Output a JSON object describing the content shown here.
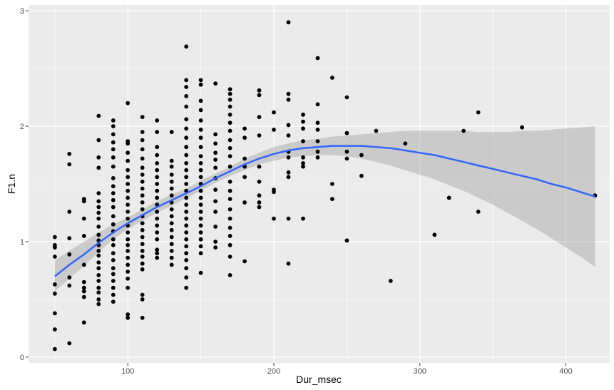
{
  "chart_data": {
    "type": "scatter",
    "xlabel": "Dur_msec",
    "ylabel": "F1.n",
    "xlim": [
      32,
      430
    ],
    "ylim": [
      -0.05,
      3.05
    ],
    "x_ticks": [
      100,
      200,
      300,
      400
    ],
    "x_minor_ticks": [
      50,
      150,
      250,
      350
    ],
    "y_ticks": [
      0,
      1,
      2,
      3
    ],
    "y_minor_ticks": [
      0.5,
      1.5,
      2.5
    ],
    "grid": true,
    "colors": {
      "panel_background": "#ebebeb",
      "grid": "#ffffff",
      "points": "#000000",
      "smooth_line": "#3366ff",
      "ribbon": "#999999"
    },
    "points": [
      [
        50,
        1.04
      ],
      [
        50,
        0.97
      ],
      [
        50,
        0.95
      ],
      [
        50,
        0.87
      ],
      [
        50,
        0.63
      ],
      [
        50,
        0.55
      ],
      [
        50,
        0.38
      ],
      [
        50,
        0.24
      ],
      [
        50,
        0.07
      ],
      [
        60,
        1.76
      ],
      [
        60,
        1.67
      ],
      [
        60,
        1.26
      ],
      [
        60,
        1.03
      ],
      [
        60,
        0.89
      ],
      [
        60,
        0.69
      ],
      [
        60,
        0.62
      ],
      [
        60,
        0.12
      ],
      [
        70,
        1.37
      ],
      [
        70,
        1.35
      ],
      [
        70,
        1.2
      ],
      [
        70,
        1.05
      ],
      [
        70,
        0.8
      ],
      [
        70,
        0.65
      ],
      [
        70,
        0.6
      ],
      [
        70,
        0.57
      ],
      [
        70,
        0.52
      ],
      [
        70,
        0.3
      ],
      [
        80,
        2.09
      ],
      [
        80,
        1.88
      ],
      [
        80,
        1.73
      ],
      [
        80,
        1.64
      ],
      [
        80,
        1.42
      ],
      [
        80,
        1.35
      ],
      [
        80,
        1.3
      ],
      [
        80,
        1.25
      ],
      [
        80,
        1.2
      ],
      [
        80,
        1.13
      ],
      [
        80,
        1.06
      ],
      [
        80,
        1.01
      ],
      [
        80,
        0.97
      ],
      [
        80,
        0.92
      ],
      [
        80,
        0.88
      ],
      [
        80,
        0.82
      ],
      [
        80,
        0.77
      ],
      [
        80,
        0.71
      ],
      [
        80,
        0.66
      ],
      [
        80,
        0.6
      ],
      [
        80,
        0.56
      ],
      [
        80,
        0.5
      ],
      [
        80,
        0.46
      ],
      [
        90,
        2.05
      ],
      [
        90,
        2.0
      ],
      [
        90,
        1.93
      ],
      [
        90,
        1.86
      ],
      [
        90,
        1.8
      ],
      [
        90,
        1.73
      ],
      [
        90,
        1.65
      ],
      [
        90,
        1.55
      ],
      [
        90,
        1.48
      ],
      [
        90,
        1.42
      ],
      [
        90,
        1.36
      ],
      [
        90,
        1.3
      ],
      [
        90,
        1.22
      ],
      [
        90,
        1.15
      ],
      [
        90,
        1.09
      ],
      [
        90,
        1.02
      ],
      [
        90,
        0.97
      ],
      [
        90,
        0.9
      ],
      [
        90,
        0.84
      ],
      [
        90,
        0.77
      ],
      [
        90,
        0.72
      ],
      [
        90,
        0.66
      ],
      [
        90,
        0.6
      ],
      [
        90,
        0.54
      ],
      [
        90,
        0.48
      ],
      [
        100,
        2.2
      ],
      [
        100,
        1.87
      ],
      [
        100,
        1.85
      ],
      [
        100,
        1.77
      ],
      [
        100,
        1.7
      ],
      [
        100,
        1.62
      ],
      [
        100,
        1.56
      ],
      [
        100,
        1.5
      ],
      [
        100,
        1.44
      ],
      [
        100,
        1.38
      ],
      [
        100,
        1.32
      ],
      [
        100,
        1.26
      ],
      [
        100,
        1.2
      ],
      [
        100,
        1.14
      ],
      [
        100,
        1.08
      ],
      [
        100,
        1.02
      ],
      [
        100,
        0.97
      ],
      [
        100,
        0.92
      ],
      [
        100,
        0.86
      ],
      [
        100,
        0.8
      ],
      [
        100,
        0.74
      ],
      [
        100,
        0.68
      ],
      [
        100,
        0.6
      ],
      [
        100,
        0.37
      ],
      [
        100,
        0.34
      ],
      [
        110,
        2.08
      ],
      [
        110,
        1.95
      ],
      [
        110,
        1.88
      ],
      [
        110,
        1.8
      ],
      [
        110,
        1.72
      ],
      [
        110,
        1.64
      ],
      [
        110,
        1.58
      ],
      [
        110,
        1.52
      ],
      [
        110,
        1.46
      ],
      [
        110,
        1.4
      ],
      [
        110,
        1.34
      ],
      [
        110,
        1.28
      ],
      [
        110,
        1.22
      ],
      [
        110,
        1.16
      ],
      [
        110,
        1.1
      ],
      [
        110,
        1.04
      ],
      [
        110,
        0.98
      ],
      [
        110,
        0.92
      ],
      [
        110,
        0.87
      ],
      [
        110,
        0.81
      ],
      [
        110,
        0.76
      ],
      [
        110,
        0.54
      ],
      [
        110,
        0.5
      ],
      [
        110,
        0.34
      ],
      [
        120,
        2.05
      ],
      [
        120,
        1.95
      ],
      [
        120,
        1.82
      ],
      [
        120,
        1.75
      ],
      [
        120,
        1.68
      ],
      [
        120,
        1.62
      ],
      [
        120,
        1.56
      ],
      [
        120,
        1.5
      ],
      [
        120,
        1.44
      ],
      [
        120,
        1.38
      ],
      [
        120,
        1.32
      ],
      [
        120,
        1.26
      ],
      [
        120,
        1.2
      ],
      [
        120,
        1.14
      ],
      [
        120,
        1.08
      ],
      [
        120,
        1.02
      ],
      [
        120,
        0.93
      ],
      [
        120,
        0.9
      ],
      [
        120,
        0.86
      ],
      [
        130,
        1.95
      ],
      [
        130,
        1.7
      ],
      [
        130,
        1.65
      ],
      [
        130,
        1.58
      ],
      [
        130,
        1.52
      ],
      [
        130,
        1.46
      ],
      [
        130,
        1.4
      ],
      [
        130,
        1.34
      ],
      [
        130,
        1.28
      ],
      [
        130,
        1.22
      ],
      [
        130,
        1.16
      ],
      [
        130,
        1.1
      ],
      [
        130,
        1.04
      ],
      [
        130,
        0.98
      ],
      [
        130,
        0.92
      ],
      [
        130,
        0.86
      ],
      [
        130,
        0.8
      ],
      [
        140,
        2.69
      ],
      [
        140,
        2.4
      ],
      [
        140,
        2.34
      ],
      [
        140,
        2.26
      ],
      [
        140,
        2.17
      ],
      [
        140,
        2.06
      ],
      [
        140,
        1.98
      ],
      [
        140,
        1.9
      ],
      [
        140,
        1.82
      ],
      [
        140,
        1.75
      ],
      [
        140,
        1.68
      ],
      [
        140,
        1.62
      ],
      [
        140,
        1.56
      ],
      [
        140,
        1.5
      ],
      [
        140,
        1.44
      ],
      [
        140,
        1.38
      ],
      [
        140,
        1.32
      ],
      [
        140,
        1.26
      ],
      [
        140,
        1.2
      ],
      [
        140,
        1.14
      ],
      [
        140,
        1.08
      ],
      [
        140,
        1.02
      ],
      [
        140,
        0.96
      ],
      [
        140,
        0.9
      ],
      [
        140,
        0.84
      ],
      [
        140,
        0.77
      ],
      [
        140,
        0.69
      ],
      [
        140,
        0.6
      ],
      [
        150,
        2.4
      ],
      [
        150,
        2.36
      ],
      [
        150,
        2.22
      ],
      [
        150,
        2.14
      ],
      [
        150,
        2.05
      ],
      [
        150,
        1.97
      ],
      [
        150,
        1.9
      ],
      [
        150,
        1.82
      ],
      [
        150,
        1.74
      ],
      [
        150,
        1.68
      ],
      [
        150,
        1.62
      ],
      [
        150,
        1.56
      ],
      [
        150,
        1.5
      ],
      [
        150,
        1.44
      ],
      [
        150,
        1.38
      ],
      [
        150,
        1.32
      ],
      [
        150,
        1.26
      ],
      [
        150,
        1.2
      ],
      [
        150,
        1.14
      ],
      [
        150,
        1.08
      ],
      [
        150,
        1.02
      ],
      [
        150,
        0.96
      ],
      [
        150,
        0.9
      ],
      [
        150,
        0.73
      ],
      [
        160,
        2.37
      ],
      [
        160,
        1.93
      ],
      [
        160,
        1.85
      ],
      [
        160,
        1.77
      ],
      [
        160,
        1.71
      ],
      [
        160,
        1.64
      ],
      [
        160,
        1.55
      ],
      [
        160,
        1.45
      ],
      [
        160,
        1.35
      ],
      [
        160,
        1.26
      ],
      [
        160,
        1.13
      ],
      [
        160,
        1.0
      ],
      [
        160,
        0.95
      ],
      [
        170,
        2.32
      ],
      [
        170,
        2.28
      ],
      [
        170,
        2.23
      ],
      [
        170,
        2.17
      ],
      [
        170,
        2.1
      ],
      [
        170,
        2.03
      ],
      [
        170,
        1.96
      ],
      [
        170,
        1.88
      ],
      [
        170,
        1.81
      ],
      [
        170,
        1.74
      ],
      [
        170,
        1.65
      ],
      [
        170,
        1.52
      ],
      [
        170,
        1.44
      ],
      [
        170,
        1.37
      ],
      [
        170,
        1.28
      ],
      [
        170,
        1.2
      ],
      [
        170,
        1.12
      ],
      [
        170,
        1.05
      ],
      [
        170,
        0.97
      ],
      [
        170,
        0.87
      ],
      [
        170,
        0.71
      ],
      [
        180,
        1.98
      ],
      [
        180,
        1.9
      ],
      [
        180,
        1.72
      ],
      [
        180,
        1.65
      ],
      [
        180,
        1.56
      ],
      [
        180,
        1.34
      ],
      [
        180,
        0.83
      ],
      [
        190,
        2.31
      ],
      [
        190,
        2.27
      ],
      [
        190,
        2.08
      ],
      [
        190,
        1.92
      ],
      [
        190,
        1.65
      ],
      [
        190,
        1.52
      ],
      [
        190,
        1.4
      ],
      [
        190,
        1.34
      ],
      [
        190,
        1.3
      ],
      [
        200,
        2.12
      ],
      [
        200,
        1.97
      ],
      [
        200,
        1.45
      ],
      [
        200,
        1.43
      ],
      [
        200,
        1.2
      ],
      [
        210,
        2.9
      ],
      [
        210,
        2.28
      ],
      [
        210,
        2.23
      ],
      [
        210,
        2.01
      ],
      [
        210,
        1.92
      ],
      [
        210,
        1.78
      ],
      [
        210,
        1.73
      ],
      [
        210,
        1.6
      ],
      [
        210,
        1.56
      ],
      [
        210,
        1.2
      ],
      [
        210,
        0.81
      ],
      [
        220,
        2.1
      ],
      [
        220,
        2.04
      ],
      [
        220,
        1.98
      ],
      [
        220,
        1.87
      ],
      [
        220,
        1.73
      ],
      [
        220,
        1.68
      ],
      [
        220,
        1.65
      ],
      [
        220,
        1.2
      ],
      [
        230,
        2.59
      ],
      [
        230,
        2.19
      ],
      [
        230,
        2.03
      ],
      [
        230,
        1.97
      ],
      [
        230,
        1.87
      ],
      [
        230,
        1.78
      ],
      [
        230,
        1.73
      ],
      [
        240,
        2.42
      ],
      [
        240,
        1.5
      ],
      [
        240,
        1.37
      ],
      [
        250,
        2.25
      ],
      [
        250,
        1.94
      ],
      [
        250,
        1.78
      ],
      [
        250,
        1.72
      ],
      [
        250,
        1.01
      ],
      [
        260,
        1.75
      ],
      [
        260,
        1.57
      ],
      [
        270,
        1.96
      ],
      [
        280,
        0.66
      ],
      [
        290,
        1.85
      ],
      [
        310,
        1.06
      ],
      [
        320,
        1.38
      ],
      [
        330,
        1.96
      ],
      [
        340,
        2.12
      ],
      [
        340,
        1.26
      ],
      [
        370,
        1.99
      ],
      [
        420,
        1.4
      ]
    ],
    "smooth": {
      "x": [
        50,
        60,
        70,
        80,
        90,
        100,
        110,
        120,
        130,
        140,
        150,
        160,
        170,
        180,
        190,
        200,
        210,
        220,
        230,
        240,
        250,
        260,
        270,
        280,
        290,
        300,
        310,
        320,
        330,
        340,
        350,
        360,
        370,
        380,
        390,
        400,
        410,
        420
      ],
      "y": [
        0.7,
        0.8,
        0.89,
        0.99,
        1.08,
        1.16,
        1.23,
        1.3,
        1.36,
        1.42,
        1.48,
        1.55,
        1.61,
        1.67,
        1.72,
        1.76,
        1.79,
        1.81,
        1.82,
        1.83,
        1.83,
        1.83,
        1.82,
        1.81,
        1.79,
        1.77,
        1.75,
        1.72,
        1.69,
        1.66,
        1.63,
        1.6,
        1.57,
        1.54,
        1.5,
        1.47,
        1.43,
        1.39
      ],
      "lower": [
        0.57,
        0.68,
        0.79,
        0.91,
        1.02,
        1.11,
        1.18,
        1.25,
        1.31,
        1.38,
        1.44,
        1.51,
        1.57,
        1.62,
        1.67,
        1.7,
        1.73,
        1.74,
        1.75,
        1.75,
        1.74,
        1.72,
        1.69,
        1.66,
        1.62,
        1.58,
        1.54,
        1.49,
        1.44,
        1.38,
        1.32,
        1.25,
        1.18,
        1.11,
        1.03,
        0.95,
        0.87,
        0.78
      ],
      "upper": [
        0.84,
        0.92,
        1.0,
        1.08,
        1.15,
        1.21,
        1.28,
        1.35,
        1.41,
        1.46,
        1.53,
        1.59,
        1.65,
        1.72,
        1.77,
        1.82,
        1.85,
        1.88,
        1.89,
        1.91,
        1.92,
        1.93,
        1.94,
        1.95,
        1.96,
        1.96,
        1.96,
        1.96,
        1.96,
        1.95,
        1.95,
        1.95,
        1.96,
        1.96,
        1.97,
        1.98,
        1.99,
        2.0
      ]
    }
  }
}
